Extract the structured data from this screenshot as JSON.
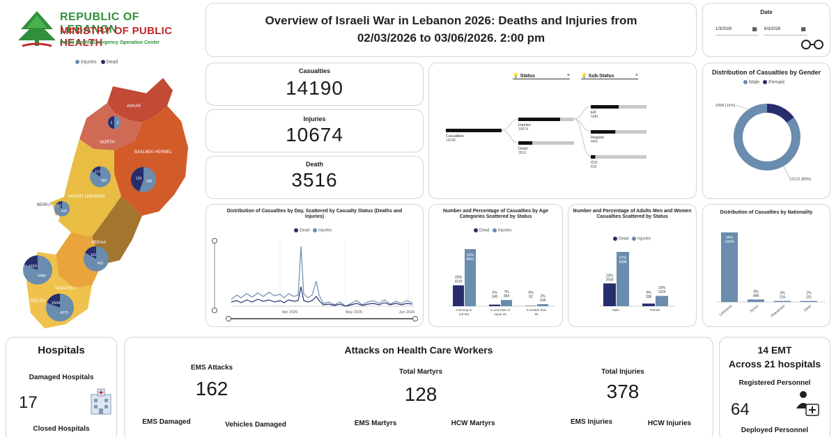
{
  "header": {
    "line1": "REPUBLIC OF LEBANON",
    "line2": "MINISTRY OF PUBLIC HEALTH",
    "line3": "Public Health Emergency Operation Center",
    "title": "Overview of Israeli War in Lebanon 2026: Deaths and Injuries from 02/03/2026 to 03/06/2026. 2:00 pm"
  },
  "map": {
    "legend_injuries": "Injuries",
    "legend_dead": "Dead",
    "regions": [
      {
        "name": "AKKAR",
        "value_a": "",
        "value_b": ""
      },
      {
        "name": "NORTH",
        "value_a": "2",
        "value_b": "2"
      },
      {
        "name": "BAALBEK HERMEL",
        "value_a": "129",
        "value_b": "283"
      },
      {
        "name": "MOUNT LEBANON",
        "value_a": "277",
        "value_b": "682"
      },
      {
        "name": "BEIRUT",
        "value_a": "53",
        "value_b": "410"
      },
      {
        "name": "BEKAA",
        "value_a": "101",
        "value_b": "403"
      },
      {
        "name": "NABATIEH",
        "value_a": "1410",
        "value_b": "4480"
      },
      {
        "name": "SOUTH",
        "value_a": "1504",
        "value_b": "4375"
      }
    ]
  },
  "date_filter": {
    "label": "Date",
    "start": "1/3/2026",
    "end": "6/3/2026"
  },
  "kpis": {
    "casualties_label": "Casualties",
    "casualties_value": "14190",
    "injuries_label": "Injuries",
    "injuries_value": "10674",
    "death_label": "Death",
    "death_value": "3516"
  },
  "tree": {
    "status_label": "Status",
    "substatus_label": "Sub-Status",
    "root_label": "Casualties",
    "root_value": "14190",
    "injuries_label": "Injuries",
    "injuries_value": "10674",
    "dead_label": "Dead",
    "dead_value": "3516",
    "er_label": "ER",
    "er_value": "5381",
    "regular_label": "Regular",
    "regular_value": "44%",
    "icu_label": "ICU",
    "icu_value": "818",
    "injuries_frac": 0.75,
    "dead_frac": 0.25,
    "er_frac": 0.5,
    "regular_frac": 0.44,
    "icu_frac": 0.08
  },
  "gender": {
    "title": "Distribution of Casualties by Gender",
    "legend_male": "Male",
    "legend_female": "Female",
    "female_label": "2068 (15%)",
    "male_label": "12122 (85%)",
    "female_pct": 15,
    "male_pct": 85
  },
  "daily": {
    "title": "Distribution of Casualties by Day, Scattered by Casualty Status (Deaths and Injuries)",
    "legend_dead": "Dead",
    "legend_injuries": "Injuries",
    "x_labels": [
      "Apr 2026",
      "May 2026",
      "Jun 2026"
    ]
  },
  "age": {
    "title": "Number and Percentage of Casualties by Age Categories Scattered by Status",
    "legend_dead": "Dead",
    "legend_injuries": "Injuries",
    "categories": [
      "2.Belong to (18-65)",
      "1.Less than or equal 18",
      "3.Greater than 65"
    ],
    "dead_pct": [
      "23%",
      "2%",
      "0%"
    ],
    "dead_val": [
      "3210",
      "245",
      "52"
    ],
    "inj_pct": [
      "63%",
      "7%",
      "2%"
    ],
    "inj_val": [
      "8801",
      "954",
      "318"
    ],
    "dead_values": [
      3210,
      245,
      52
    ],
    "inj_values": [
      8801,
      954,
      318
    ]
  },
  "adults": {
    "title": "Number and Percentage of Adults Men and Women Casualties Scattered by Status",
    "legend_dead": "Dead",
    "legend_injuries": "Injuries",
    "categories": [
      "Male",
      "Female"
    ],
    "dead_pct": [
      "23%",
      "3%"
    ],
    "dead_val": [
      "2933",
      "338"
    ],
    "inj_pct": [
      "57%",
      "10%"
    ],
    "inj_val": [
      "6998",
      "1324"
    ],
    "dead_values": [
      2933,
      338
    ],
    "inj_values": [
      6998,
      1324
    ]
  },
  "nationality": {
    "title": "Distribution of Casualties by Nationality",
    "categories": [
      "Lebanese",
      "Syrian",
      "Palestinian",
      "Other"
    ],
    "pct": [
      "94%",
      "4%",
      "2%",
      "1%"
    ],
    "val": [
      "13324",
      "488",
      "216",
      "151"
    ],
    "values": [
      13324,
      488,
      216,
      151
    ]
  },
  "hospitals": {
    "title": "Hospitals",
    "damaged_label": "Damaged Hospitals",
    "damaged_value": "17",
    "closed_label": "Closed Hospitals"
  },
  "attacks": {
    "title": "Attacks on Health Care Workers",
    "ems_attacks_label": "EMS Attacks",
    "ems_attacks_value": "162",
    "total_martyrs_label": "Total Martyrs",
    "total_martyrs_value": "128",
    "total_injuries_label": "Total Injuries",
    "total_injuries_value": "378",
    "ems_damaged_label": "EMS Damaged",
    "vehicles_damaged_label": "Vehicles Damaged",
    "ems_martyrs_label": "EMS Martyrs",
    "hcw_martyrs_label": "HCW Martyrs",
    "ems_injuries_label": "EMS Injuries",
    "hcw_injuries_label": "HCW Injuries"
  },
  "emt": {
    "line1": "14 EMT",
    "line2": "Across 21 hospitals",
    "registered_label": "Registered Personnel",
    "registered_value": "64",
    "deployed_label": "Deployed Personnel"
  },
  "colors": {
    "dead": "#262e6e",
    "injuries": "#6a8cae",
    "card_border": "#d4d4d4",
    "logo_green": "#3a9a3a",
    "logo_red": "#c0272d"
  }
}
